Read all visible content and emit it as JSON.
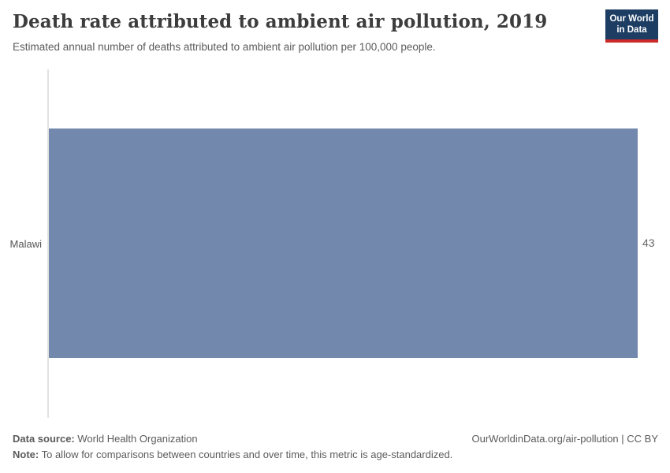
{
  "header": {
    "title": "Death rate attributed to ambient air pollution, 2019",
    "subtitle": "Estimated annual number of deaths attributed to ambient air pollution per 100,000 people.",
    "logo": {
      "line1": "Our World",
      "line2": "in Data",
      "bg_color": "#1d3d63",
      "underline_color": "#cc2a2a"
    }
  },
  "chart_data": {
    "type": "bar",
    "orientation": "horizontal",
    "title": "Death rate attributed to ambient air pollution, 2019",
    "subtitle": "Estimated annual number of deaths attributed to ambient air pollution per 100,000 people.",
    "categories": [
      "Malawi"
    ],
    "values": [
      43
    ],
    "value_labels": [
      "43"
    ],
    "xlabel": "",
    "ylabel": "",
    "xlim": [
      0,
      43
    ],
    "grid": false,
    "legend": false,
    "bar_color": "#7288ad",
    "axis_line_color": "#e2e2e2"
  },
  "footer": {
    "data_source_label": "Data source:",
    "data_source_value": "World Health Organization",
    "note_label": "Note:",
    "note_value": "To allow for comparisons between countries and over time, this metric is age-standardized.",
    "credit": "OurWorldinData.org/air-pollution | CC BY"
  }
}
